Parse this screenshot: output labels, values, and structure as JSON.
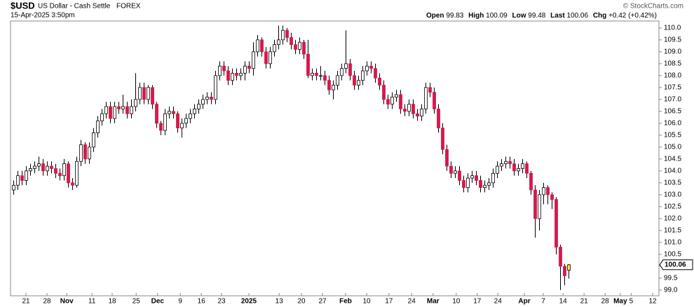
{
  "chart_data": {
    "type": "candlestick",
    "symbol": "$USD",
    "name": "US Dollar - Cash Settle",
    "exchange": "FOREX",
    "timestamp": "15-Apr-2025 3:50pm",
    "stat_labels": {
      "open": "Open",
      "high": "High",
      "low": "Low",
      "last": "Last",
      "change": "Chg"
    },
    "change": "+0.42 (+0.42%)",
    "credit": "© StockCharts.com",
    "up_color": "#ffffff",
    "down_color": "#d5184a",
    "highlight_color": "#f7ea45",
    "grid": false,
    "open": [
      103.2,
      103.4,
      103.8,
      103.6,
      104.0,
      104.1,
      104.2,
      104.3,
      104.0,
      104.2,
      104.1,
      103.9,
      103.8,
      104.3,
      103.5,
      103.4,
      104.4,
      105.1,
      104.5,
      105.0,
      105.6,
      106.1,
      106.4,
      106.7,
      106.2,
      106.7,
      106.6,
      106.7,
      106.4,
      106.7,
      107.0,
      107.5,
      107.0,
      107.5,
      106.8,
      106.0,
      105.7,
      106.4,
      106.5,
      106.4,
      105.8,
      106.0,
      106.2,
      106.4,
      106.6,
      106.8,
      107.0,
      107.1,
      107.0,
      108.0,
      108.4,
      108.2,
      107.8,
      108.1,
      108.0,
      108.1,
      108.4,
      108.3,
      109.0,
      109.5,
      109.0,
      108.5,
      109.0,
      109.3,
      109.5,
      109.9,
      109.6,
      109.3,
      109.1,
      109.4,
      108.9,
      108.0,
      108.1,
      108.0,
      108.0,
      107.8,
      107.4,
      107.6,
      108.0,
      108.3,
      108.5,
      108.0,
      107.6,
      107.8,
      108.2,
      108.4,
      108.3,
      107.9,
      107.6,
      107.0,
      106.8,
      107.1,
      107.2,
      106.6,
      106.5,
      106.8,
      106.4,
      106.3,
      106.6,
      107.5,
      107.3,
      106.6,
      105.8,
      104.9,
      104.2,
      103.9,
      104.0,
      103.6,
      103.3,
      103.7,
      103.8,
      103.6,
      103.3,
      103.4,
      103.5,
      103.9,
      104.2,
      104.3,
      104.4,
      104.3,
      104.0,
      104.1,
      104.3,
      103.9,
      103.2,
      102.0,
      103.0,
      103.3,
      103.0,
      102.8,
      100.8,
      100.0,
      99.83
    ],
    "high": [
      103.6,
      104.0,
      104.0,
      104.2,
      104.3,
      104.4,
      104.6,
      104.5,
      104.4,
      104.4,
      104.3,
      104.1,
      104.5,
      104.4,
      103.7,
      104.6,
      105.3,
      105.2,
      105.2,
      105.8,
      106.3,
      106.6,
      106.9,
      106.9,
      106.9,
      106.9,
      107.2,
      106.9,
      107.0,
      108.1,
      107.7,
      107.7,
      107.6,
      107.6,
      106.9,
      106.1,
      106.6,
      106.7,
      106.7,
      106.5,
      106.2,
      106.4,
      106.6,
      106.8,
      107.0,
      107.2,
      107.3,
      107.3,
      108.2,
      108.6,
      108.6,
      108.4,
      108.3,
      108.3,
      108.3,
      108.6,
      108.6,
      109.4,
      109.7,
      109.6,
      109.2,
      109.2,
      109.5,
      110.1,
      110.1,
      110.0,
      109.8,
      109.5,
      109.6,
      109.5,
      109.5,
      108.3,
      108.3,
      108.4,
      108.2,
      108.0,
      107.8,
      108.2,
      108.5,
      109.9,
      108.7,
      108.2,
      108.0,
      108.4,
      108.6,
      108.6,
      108.5,
      108.1,
      107.8,
      107.2,
      107.3,
      107.4,
      107.4,
      106.8,
      107.0,
      107.0,
      106.6,
      106.8,
      107.7,
      107.7,
      107.5,
      106.8,
      106.0,
      105.1,
      104.4,
      104.2,
      104.2,
      103.8,
      103.9,
      104.0,
      104.0,
      103.8,
      103.6,
      103.7,
      104.1,
      104.4,
      104.5,
      104.6,
      104.6,
      104.5,
      104.3,
      104.5,
      104.4,
      104.0,
      103.4,
      103.2,
      103.5,
      103.4,
      103.1,
      102.9,
      100.9,
      100.1,
      100.09
    ],
    "low": [
      103.0,
      103.2,
      103.4,
      103.4,
      103.8,
      103.9,
      104.0,
      103.8,
      103.8,
      103.9,
      103.7,
      103.6,
      103.6,
      103.3,
      103.2,
      103.3,
      104.2,
      104.3,
      104.3,
      104.8,
      105.4,
      105.9,
      106.2,
      106.0,
      106.0,
      106.4,
      106.4,
      106.2,
      106.2,
      106.5,
      106.8,
      106.8,
      106.8,
      106.6,
      105.8,
      105.5,
      105.5,
      106.2,
      106.2,
      105.6,
      105.4,
      105.8,
      106.0,
      106.2,
      106.4,
      106.6,
      106.8,
      106.8,
      106.8,
      107.8,
      108.0,
      107.6,
      107.6,
      107.8,
      107.8,
      107.8,
      108.1,
      108.0,
      108.8,
      108.8,
      108.3,
      108.3,
      108.8,
      109.1,
      109.3,
      109.4,
      109.1,
      108.9,
      108.9,
      108.7,
      107.9,
      107.8,
      107.8,
      107.8,
      107.6,
      107.2,
      107.0,
      107.4,
      107.8,
      108.1,
      107.8,
      107.4,
      107.4,
      107.6,
      108.0,
      108.1,
      107.7,
      107.4,
      106.8,
      106.6,
      106.6,
      106.9,
      106.4,
      106.3,
      106.3,
      106.2,
      106.1,
      106.1,
      106.4,
      107.1,
      106.4,
      105.6,
      104.7,
      104.0,
      103.7,
      103.7,
      103.4,
      103.1,
      103.1,
      103.5,
      103.4,
      103.1,
      103.1,
      103.2,
      103.3,
      103.7,
      104.0,
      104.1,
      104.1,
      103.8,
      103.8,
      103.9,
      103.7,
      103.0,
      101.2,
      101.5,
      102.6,
      102.6,
      102.4,
      100.5,
      99.0,
      99.2,
      99.48
    ],
    "close": [
      103.4,
      103.8,
      103.6,
      104.0,
      104.1,
      104.2,
      104.3,
      104.0,
      104.2,
      104.1,
      103.9,
      103.8,
      104.3,
      103.5,
      103.4,
      104.4,
      105.1,
      104.5,
      105.0,
      105.6,
      106.1,
      106.4,
      106.7,
      106.2,
      106.7,
      106.6,
      106.7,
      106.4,
      106.7,
      107.0,
      107.5,
      107.0,
      107.5,
      106.8,
      106.0,
      105.7,
      106.4,
      106.5,
      106.4,
      105.8,
      106.0,
      106.2,
      106.4,
      106.6,
      106.8,
      107.0,
      107.1,
      107.0,
      108.0,
      108.4,
      108.2,
      107.8,
      108.1,
      108.0,
      108.1,
      108.4,
      108.3,
      109.0,
      109.5,
      109.0,
      108.5,
      109.0,
      109.3,
      109.5,
      109.9,
      109.6,
      109.3,
      109.1,
      109.4,
      108.9,
      108.0,
      108.1,
      108.0,
      108.0,
      107.8,
      107.4,
      107.6,
      108.0,
      108.3,
      108.5,
      108.0,
      107.6,
      107.8,
      108.2,
      108.4,
      108.3,
      107.9,
      107.6,
      107.0,
      106.8,
      107.1,
      107.2,
      106.6,
      106.5,
      106.8,
      106.4,
      106.3,
      106.6,
      107.5,
      107.3,
      106.6,
      105.8,
      104.9,
      104.2,
      103.9,
      104.0,
      103.6,
      103.3,
      103.7,
      103.8,
      103.6,
      103.3,
      103.4,
      103.5,
      103.9,
      104.2,
      104.3,
      104.4,
      104.3,
      104.0,
      104.1,
      104.3,
      103.9,
      103.2,
      102.0,
      103.0,
      103.3,
      103.0,
      102.8,
      100.8,
      100.0,
      99.6,
      100.06
    ],
    "xlim": [
      -0.67,
      153.5
    ],
    "xticks": [
      {
        "value": 3,
        "label": "21"
      },
      {
        "value": 8,
        "label": "28"
      },
      {
        "value": 12.7,
        "label": "Nov"
      },
      {
        "value": 18.7,
        "label": "11"
      },
      {
        "value": 23.5,
        "label": "18"
      },
      {
        "value": 29.2,
        "label": "25"
      },
      {
        "value": 34.3,
        "label": "Dec"
      },
      {
        "value": 39.7,
        "label": "9"
      },
      {
        "value": 44.7,
        "label": "16"
      },
      {
        "value": 49.5,
        "label": "23"
      },
      {
        "value": 56,
        "label": "2025"
      },
      {
        "value": 63.2,
        "label": "13"
      },
      {
        "value": 68.5,
        "label": "20"
      },
      {
        "value": 73.5,
        "label": "27"
      },
      {
        "value": 79,
        "label": "Feb"
      },
      {
        "value": 84,
        "label": "10"
      },
      {
        "value": 89.3,
        "label": "17"
      },
      {
        "value": 94.7,
        "label": "24"
      },
      {
        "value": 99.8,
        "label": "Mar"
      },
      {
        "value": 105.3,
        "label": "10"
      },
      {
        "value": 110.3,
        "label": "17"
      },
      {
        "value": 115.2,
        "label": "24"
      },
      {
        "value": 121.5,
        "label": "Apr"
      },
      {
        "value": 126,
        "label": "7"
      },
      {
        "value": 130.7,
        "label": "14"
      },
      {
        "value": 135.7,
        "label": "21"
      },
      {
        "value": 140.7,
        "label": "28"
      },
      {
        "value": 144.3,
        "label": "May"
      },
      {
        "value": 146.9,
        "label": "5"
      },
      {
        "value": 152,
        "label": "12"
      }
    ],
    "ylim": [
      98.76,
      110.29
    ],
    "yticks": [
      {
        "value": 99.0,
        "label": "99.0"
      },
      {
        "value": 99.5,
        "label": "99.5"
      },
      {
        "value": 100.0,
        "label": "100.0"
      },
      {
        "value": 100.5,
        "label": "100.5"
      },
      {
        "value": 101.0,
        "label": "101.0"
      },
      {
        "value": 101.5,
        "label": "101.5"
      },
      {
        "value": 102.0,
        "label": "102.0"
      },
      {
        "value": 102.5,
        "label": "102.5"
      },
      {
        "value": 103.0,
        "label": "103.0"
      },
      {
        "value": 103.5,
        "label": "103.5"
      },
      {
        "value": 104.0,
        "label": "104.0"
      },
      {
        "value": 104.5,
        "label": "104.5"
      },
      {
        "value": 105.0,
        "label": "105.0"
      },
      {
        "value": 105.5,
        "label": "105.5"
      },
      {
        "value": 106.0,
        "label": "106.0"
      },
      {
        "value": 106.5,
        "label": "106.5"
      },
      {
        "value": 107.0,
        "label": "107.0"
      },
      {
        "value": 107.5,
        "label": "107.5"
      },
      {
        "value": 108.0,
        "label": "108.0"
      },
      {
        "value": 108.5,
        "label": "108.5"
      },
      {
        "value": 109.0,
        "label": "109.0"
      },
      {
        "value": 109.5,
        "label": "109.5"
      },
      {
        "value": 110.0,
        "label": "110.0"
      }
    ]
  }
}
